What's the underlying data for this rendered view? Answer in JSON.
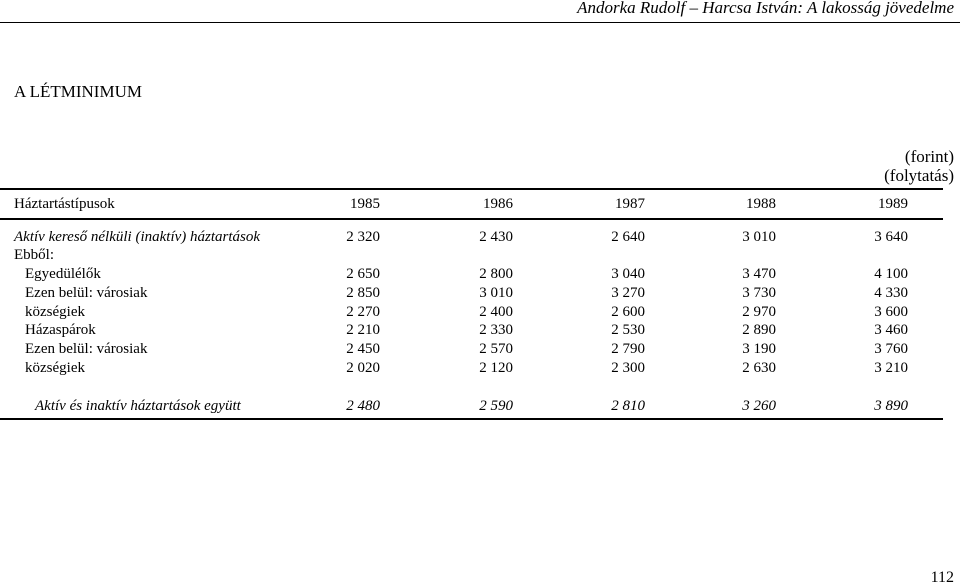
{
  "running_head": "Andorka Rudolf – Harcsa István: A lakosság jövedelme",
  "section_title": "A LÉTMINIMUM",
  "unit_note": [
    "(forint)",
    "(folytatás)"
  ],
  "table": {
    "header": {
      "label": "Háztartástípusok",
      "years": [
        "1985",
        "1986",
        "1987",
        "1988",
        "1989"
      ]
    },
    "rows": [
      {
        "label": "Aktív kereső nélküli (inaktív) háztartások",
        "values": [
          "2 320",
          "2 430",
          "2 640",
          "3 010",
          "3 640"
        ]
      },
      {
        "label": "Ebből:",
        "values": []
      },
      {
        "label": "Egyedülélők",
        "values": [
          "2 650",
          "2 800",
          "3 040",
          "3 470",
          "4 100"
        ]
      },
      {
        "label": "Ezen belül: városiak",
        "values": [
          "2 850",
          "3 010",
          "3 270",
          "3 730",
          "4 330"
        ]
      },
      {
        "label": "községiek",
        "values": [
          "2 270",
          "2 400",
          "2 600",
          "2 970",
          "3 600"
        ]
      },
      {
        "label": "Házaspárok",
        "values": [
          "2 210",
          "2 330",
          "2 530",
          "2 890",
          "3 460"
        ]
      },
      {
        "label": "Ezen belül: városiak",
        "values": [
          "2 450",
          "2 570",
          "2 790",
          "3 190",
          "3 760"
        ]
      },
      {
        "label": "községiek",
        "values": [
          "2 020",
          "2 120",
          "2 300",
          "2 630",
          "3 210"
        ]
      }
    ],
    "total": {
      "label": "Aktív és inaktív háztartások együtt",
      "values": [
        "2 480",
        "2 590",
        "2 810",
        "3 260",
        "3 890"
      ]
    }
  },
  "page_number": "112"
}
